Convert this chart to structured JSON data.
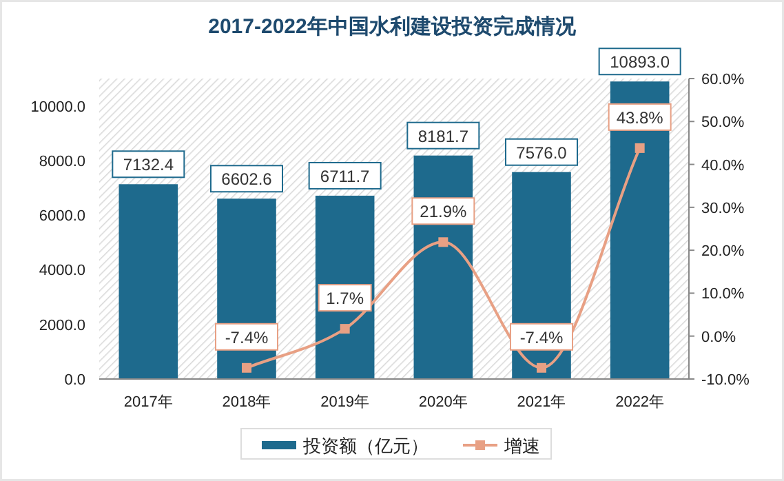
{
  "chart_data": {
    "type": "bar",
    "title": "2017-2022年中国水利建设投资完成情况",
    "categories": [
      "2017年",
      "2018年",
      "2019年",
      "2020年",
      "2021年",
      "2022年"
    ],
    "series": [
      {
        "name": "投资额（亿元）",
        "color": "#1e6a8d",
        "values": [
          7132.4,
          6602.6,
          6711.7,
          8181.7,
          7576.0,
          10893.0
        ],
        "value_labels": [
          "7132.4",
          "6602.6",
          "6711.7",
          "8181.7",
          "7576.0",
          "10893.0"
        ]
      },
      {
        "name": "增速",
        "type": "line",
        "axis": "y2",
        "color": "#e8a084",
        "marker": "square",
        "values": [
          null,
          -7.4,
          1.7,
          21.9,
          -7.4,
          43.8
        ],
        "value_labels": [
          null,
          "-7.4%",
          "1.7%",
          "21.9%",
          "-7.4%",
          "43.8%"
        ]
      }
    ],
    "ylim": [
      0,
      11000
    ],
    "yticks": [
      {
        "value": 0,
        "label": "0.0"
      },
      {
        "value": 2000,
        "label": "2000.0"
      },
      {
        "value": 4000,
        "label": "4000.0"
      },
      {
        "value": 6000,
        "label": "6000.0"
      },
      {
        "value": 8000,
        "label": "8000.0"
      },
      {
        "value": 10000,
        "label": "10000.0"
      }
    ],
    "y2lim": [
      -10,
      60
    ],
    "y2ticks": [
      {
        "value": -10,
        "label": "-10.0%"
      },
      {
        "value": 0,
        "label": "0.0%"
      },
      {
        "value": 10,
        "label": "10.0%"
      },
      {
        "value": 20,
        "label": "20.0%"
      },
      {
        "value": 30,
        "label": "30.0%"
      },
      {
        "value": 40,
        "label": "40.0%"
      },
      {
        "value": 50,
        "label": "50.0%"
      },
      {
        "value": 60,
        "label": "60.0%"
      }
    ],
    "grid": false,
    "legend": "bottom"
  }
}
